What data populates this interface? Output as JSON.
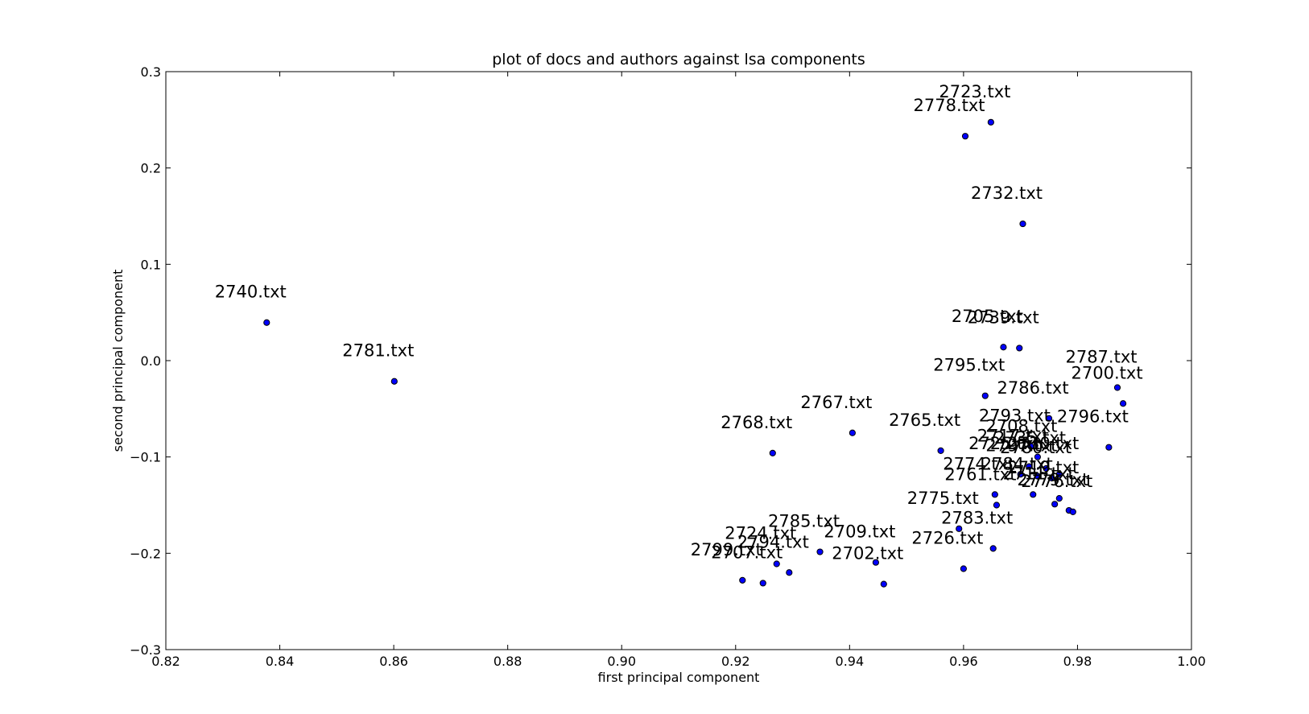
{
  "chart_data": {
    "type": "scatter",
    "title": "plot of docs and authors against lsa components",
    "xlabel": "first principal component",
    "ylabel": "second principal component",
    "xlim": [
      0.82,
      1.0
    ],
    "ylim": [
      -0.3,
      0.3
    ],
    "xticks": [
      0.82,
      0.84,
      0.86,
      0.88,
      0.9,
      0.92,
      0.94,
      0.96,
      0.98,
      1.0
    ],
    "xtick_labels": [
      "0.82",
      "0.84",
      "0.86",
      "0.88",
      "0.90",
      "0.92",
      "0.94",
      "0.96",
      "0.98",
      "1.00"
    ],
    "yticks": [
      -0.3,
      -0.2,
      -0.1,
      0.0,
      0.1,
      0.2,
      0.3
    ],
    "ytick_labels": [
      "−0.3",
      "−0.2",
      "−0.1",
      "0.0",
      "0.1",
      "0.2",
      "0.3"
    ],
    "grid": false,
    "marker_color": "#0000ff",
    "points": [
      {
        "label": "2723.txt",
        "x": 0.9648,
        "y": 0.2475
      },
      {
        "label": "2778.txt",
        "x": 0.9603,
        "y": 0.233
      },
      {
        "label": "2732.txt",
        "x": 0.9704,
        "y": 0.142
      },
      {
        "label": "2740.txt",
        "x": 0.8377,
        "y": 0.0395
      },
      {
        "label": "2781.txt",
        "x": 0.8601,
        "y": -0.0215
      },
      {
        "label": "2705.txt",
        "x": 0.967,
        "y": 0.014
      },
      {
        "label": "2739.txt",
        "x": 0.9698,
        "y": 0.013
      },
      {
        "label": "2795.txt",
        "x": 0.9638,
        "y": -0.0365
      },
      {
        "label": "2787.txt",
        "x": 0.987,
        "y": -0.028
      },
      {
        "label": "2700.txt",
        "x": 0.988,
        "y": -0.0445
      },
      {
        "label": "2786.txt",
        "x": 0.975,
        "y": -0.06
      },
      {
        "label": "2767.txt",
        "x": 0.9405,
        "y": -0.075
      },
      {
        "label": "2768.txt",
        "x": 0.9265,
        "y": -0.096
      },
      {
        "label": "2765.txt",
        "x": 0.956,
        "y": -0.0935
      },
      {
        "label": "2793.txt",
        "x": 0.9718,
        "y": -0.089
      },
      {
        "label": "2796.txt",
        "x": 0.9855,
        "y": -0.09
      },
      {
        "label": "2708.txt",
        "x": 0.973,
        "y": -0.1
      },
      {
        "label": "2717.txt",
        "x": 0.9715,
        "y": -0.11
      },
      {
        "label": "2735.txt",
        "x": 0.9745,
        "y": -0.112
      },
      {
        "label": "2725.txt",
        "x": 0.97,
        "y": -0.118
      },
      {
        "label": "2797.txt",
        "x": 0.973,
        "y": -0.12
      },
      {
        "label": "2780.txt",
        "x": 0.9755,
        "y": -0.122
      },
      {
        "label": "2730.txt",
        "x": 0.9768,
        "y": -0.118
      },
      {
        "label": "2774.txt",
        "x": 0.9655,
        "y": -0.139
      },
      {
        "label": "2784.txt",
        "x": 0.9722,
        "y": -0.139
      },
      {
        "label": "2719.txt",
        "x": 0.9768,
        "y": -0.143
      },
      {
        "label": "2711.txt",
        "x": 0.976,
        "y": -0.149
      },
      {
        "label": "2761.txt",
        "x": 0.9658,
        "y": -0.15
      },
      {
        "label": "2775.txt",
        "x": 0.9592,
        "y": -0.1745
      },
      {
        "label": "2783.txt",
        "x": 0.9652,
        "y": -0.195
      },
      {
        "label": "2785.txt",
        "x": 0.9348,
        "y": -0.1985
      },
      {
        "label": "2709.txt",
        "x": 0.9446,
        "y": -0.2095
      },
      {
        "label": "2724.txt",
        "x": 0.9272,
        "y": -0.211
      },
      {
        "label": "2794.txt",
        "x": 0.9294,
        "y": -0.22
      },
      {
        "label": "2726.txt",
        "x": 0.96,
        "y": -0.216
      },
      {
        "label": "2799.txt",
        "x": 0.9212,
        "y": -0.228
      },
      {
        "label": "2707.txt",
        "x": 0.9248,
        "y": -0.231
      },
      {
        "label": "2702.txt",
        "x": 0.946,
        "y": -0.232
      },
      {
        "label": "2779.txt",
        "x": 0.9785,
        "y": -0.1555
      },
      {
        "label": "2776.txt",
        "x": 0.9792,
        "y": -0.157
      }
    ],
    "label_offsets_note": ""
  }
}
